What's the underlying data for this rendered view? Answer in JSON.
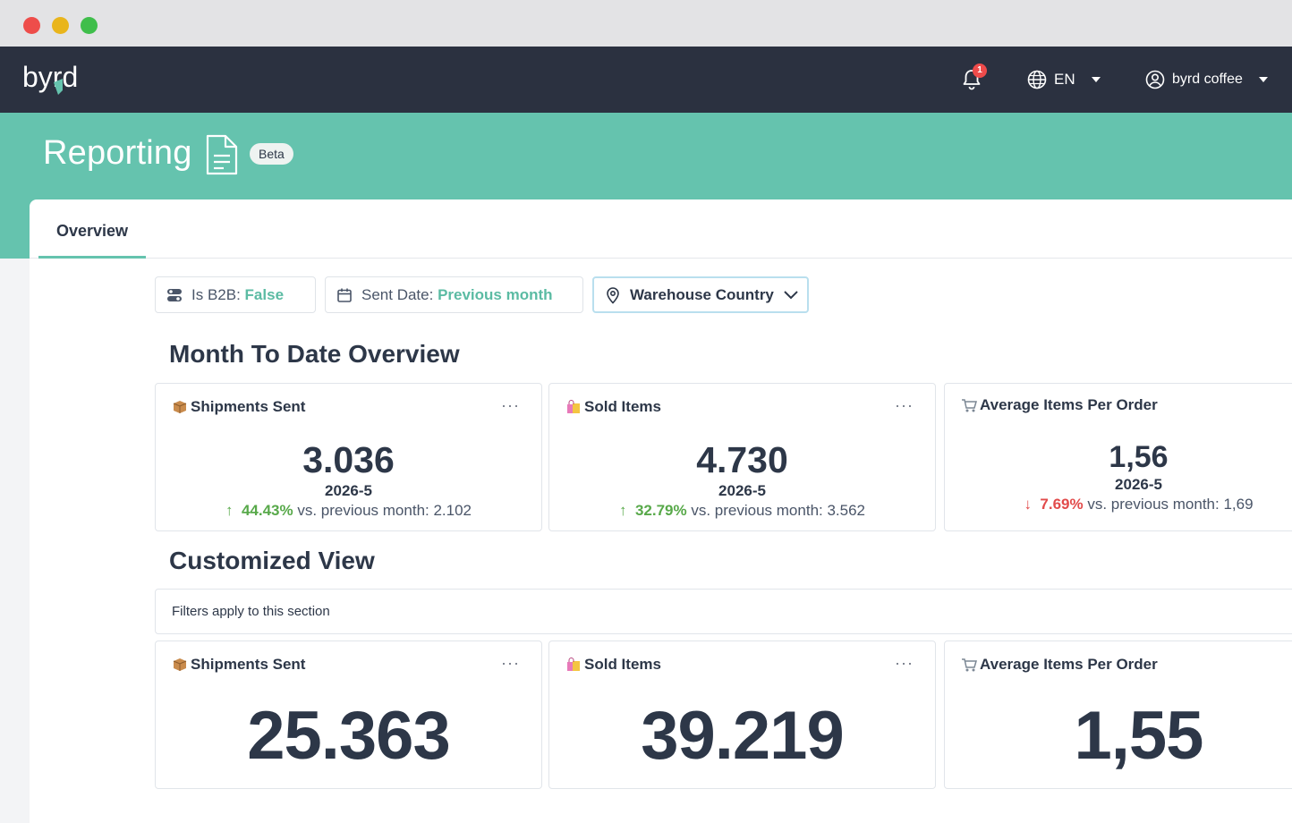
{
  "app": {
    "logo_text": "byrd"
  },
  "nav": {
    "notification_count": "1",
    "language": "EN",
    "user_name": "byrd coffee"
  },
  "header": {
    "title": "Reporting",
    "badge": "Beta"
  },
  "tabs": [
    {
      "label": "Overview",
      "active": true
    }
  ],
  "filters": {
    "b2b_label": "Is B2B:",
    "b2b_value": "False",
    "sent_date_label": "Sent Date:",
    "sent_date_value": "Previous month",
    "warehouse_country": "Warehouse Country"
  },
  "month_to_date": {
    "title": "Month To Date Overview",
    "cards": [
      {
        "title": "Shipments Sent",
        "icon": "package-icon",
        "value": "3.036",
        "period": "2026-5",
        "change": "44.43%",
        "direction": "up",
        "comparison": "vs. previous month: 2.102"
      },
      {
        "title": "Sold Items",
        "icon": "shopping-bag-icon",
        "value": "4.730",
        "period": "2026-5",
        "change": "32.79%",
        "direction": "up",
        "comparison": "vs. previous month: 3.562"
      },
      {
        "title": "Average Items Per Order",
        "icon": "cart-icon",
        "value": "1,56",
        "period": "2026-5",
        "change": "7.69%",
        "direction": "down",
        "comparison": "vs. previous month: 1,69"
      }
    ]
  },
  "customized": {
    "title": "Customized View",
    "note": "Filters apply to this section",
    "cards": [
      {
        "title": "Shipments Sent",
        "icon": "package-icon",
        "value": "25.363"
      },
      {
        "title": "Sold Items",
        "icon": "shopping-bag-icon",
        "value": "39.219"
      },
      {
        "title": "Average Items Per Order",
        "icon": "cart-icon",
        "value": "1,55"
      }
    ]
  },
  "colors": {
    "nav_bg": "#2b3140",
    "teal": "#65c3ae",
    "positive": "#58a94a",
    "negative": "#e24b4b"
  }
}
